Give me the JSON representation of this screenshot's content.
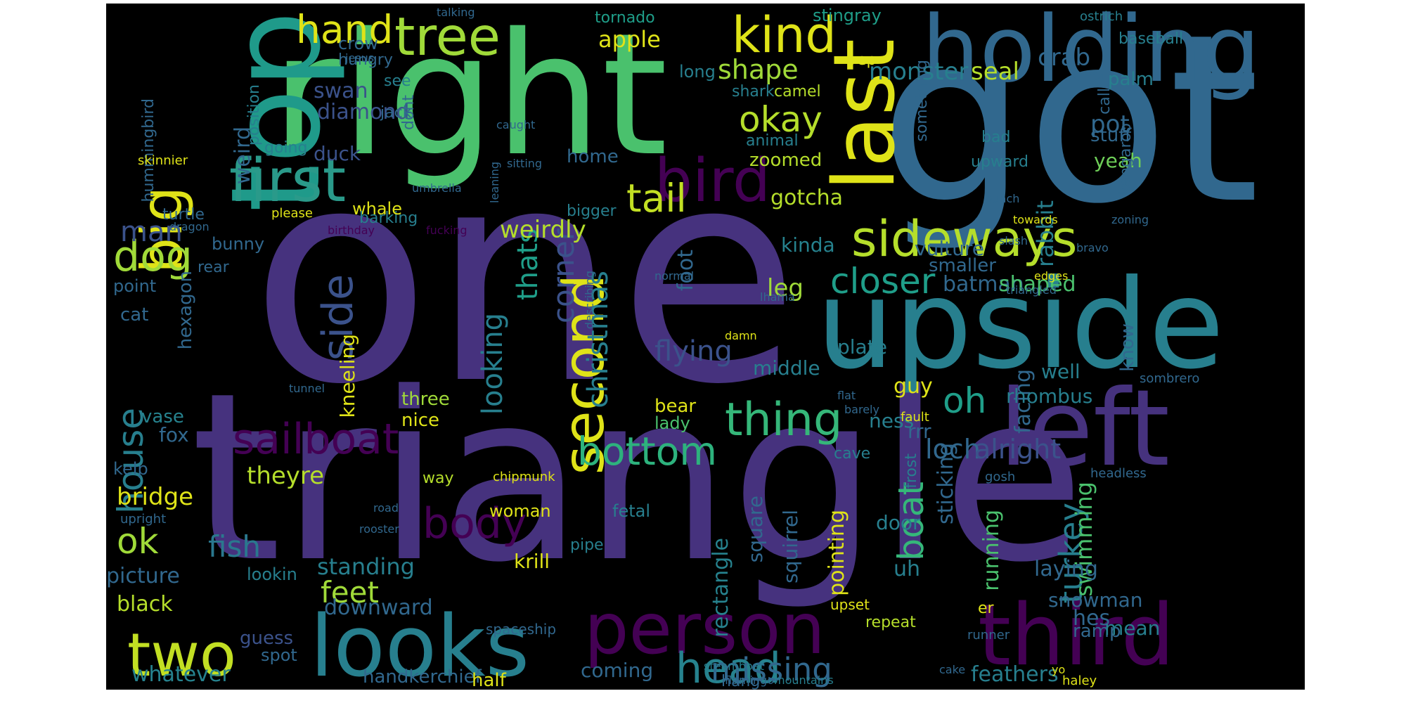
{
  "image": {
    "kind": "word cloud",
    "background": "#000000",
    "page_background": "#ffffff"
  },
  "palette": {
    "indigo": "#46327e",
    "purple": "#440154",
    "blue": "#365c8d",
    "steel": "#3b528b",
    "teal": "#277f8e",
    "cyan": "#1fa187",
    "green": "#4ac16d",
    "lime": "#a0da39",
    "yellow": "#dfe318",
    "gold": "#fde725"
  },
  "words": [
    {
      "text": "one",
      "color": "#46327e"
    },
    {
      "text": "triangle",
      "color": "#46327e"
    },
    {
      "text": "got",
      "color": "#31688e"
    },
    {
      "text": "right",
      "color": "#4ac16d"
    },
    {
      "text": "upside",
      "color": "#277f8e"
    },
    {
      "text": "top",
      "color": "#1f9a8a"
    },
    {
      "text": "holding",
      "color": "#31688e"
    },
    {
      "text": "last",
      "color": "#dfe318"
    },
    {
      "text": "left",
      "color": "#46327e"
    },
    {
      "text": "third",
      "color": "#440154"
    },
    {
      "text": "person",
      "color": "#440154"
    },
    {
      "text": "looks",
      "color": "#277f8e"
    },
    {
      "text": "first",
      "color": "#2a9a8a"
    },
    {
      "text": "bird",
      "color": "#440154"
    },
    {
      "text": "tree",
      "color": "#a0da39"
    },
    {
      "text": "hand",
      "color": "#dfe318"
    },
    {
      "text": "kind",
      "color": "#dfe318"
    },
    {
      "text": "second",
      "color": "#dfe318"
    },
    {
      "text": "sideways",
      "color": "#b5de2b"
    },
    {
      "text": "two",
      "color": "#c2df23"
    },
    {
      "text": "big",
      "color": "#dfe318"
    },
    {
      "text": "thing",
      "color": "#35b779"
    },
    {
      "text": "okay",
      "color": "#b5de2b"
    },
    {
      "text": "tail",
      "color": "#c2df23"
    },
    {
      "text": "dog",
      "color": "#a0da39"
    },
    {
      "text": "sailboat",
      "color": "#440154"
    },
    {
      "text": "bottom",
      "color": "#2db27d"
    },
    {
      "text": "head",
      "color": "#26828e"
    },
    {
      "text": "body",
      "color": "#440154"
    },
    {
      "text": "side",
      "color": "#3b528b"
    },
    {
      "text": "house",
      "color": "#277f8e"
    },
    {
      "text": "closer",
      "color": "#1f9e89"
    },
    {
      "text": "boat",
      "color": "#35b779"
    },
    {
      "text": "oh",
      "color": "#1f9e89"
    },
    {
      "text": "ok",
      "color": "#a0da39"
    },
    {
      "text": "fish",
      "color": "#2a788e"
    },
    {
      "text": "corner",
      "color": "#3b528b"
    },
    {
      "text": "missing",
      "color": "#31688e"
    },
    {
      "text": "turkey",
      "color": "#277f8e"
    },
    {
      "text": "shape",
      "color": "#a0da39"
    },
    {
      "text": "feet",
      "color": "#a0da39"
    },
    {
      "text": "flying",
      "color": "#3b528b"
    },
    {
      "text": "thats",
      "color": "#1f9e89"
    },
    {
      "text": "looking",
      "color": "#277f8e"
    },
    {
      "text": "christmas",
      "color": "#277f8e"
    },
    {
      "text": "man",
      "color": "#3b528b"
    },
    {
      "text": "loch",
      "color": "#31688e"
    },
    {
      "text": "alright",
      "color": "#3b528b"
    },
    {
      "text": "monster",
      "color": "#277f8e"
    },
    {
      "text": "seal",
      "color": "#b5de2b"
    },
    {
      "text": "crab",
      "color": "#31688e"
    },
    {
      "text": "apple",
      "color": "#dfe318"
    },
    {
      "text": "weirdly",
      "color": "#b5de2b"
    },
    {
      "text": "weird",
      "color": "#31688e"
    },
    {
      "text": "diamond",
      "color": "#3b528b"
    },
    {
      "text": "swan",
      "color": "#3b528b"
    },
    {
      "text": "duck",
      "color": "#3b528b"
    },
    {
      "text": "rabbit",
      "color": "#277f8e"
    },
    {
      "text": "pot",
      "color": "#31688e"
    },
    {
      "text": "palm",
      "color": "#277f8e"
    },
    {
      "text": "yeah",
      "color": "#6ece58"
    },
    {
      "text": "stuff",
      "color": "#31688e"
    },
    {
      "text": "gotcha",
      "color": "#b5de2b"
    },
    {
      "text": "kinda",
      "color": "#26828e"
    },
    {
      "text": "leg",
      "color": "#a0da39"
    },
    {
      "text": "foot",
      "color": "#31688e"
    },
    {
      "text": "zoomed",
      "color": "#b5de2b"
    },
    {
      "text": "batman",
      "color": "#31688e"
    },
    {
      "text": "shaped",
      "color": "#4ac16d"
    },
    {
      "text": "smaller",
      "color": "#31688e"
    },
    {
      "text": "vulture",
      "color": "#31688e"
    },
    {
      "text": "facing",
      "color": "#31688e"
    },
    {
      "text": "swimming",
      "color": "#4ac16d"
    },
    {
      "text": "running",
      "color": "#4ac16d"
    },
    {
      "text": "sticking",
      "color": "#31688e"
    },
    {
      "text": "laying",
      "color": "#31688e"
    },
    {
      "text": "hes",
      "color": "#31688e"
    },
    {
      "text": "ramp",
      "color": "#31688e"
    },
    {
      "text": "feathers",
      "color": "#277f8e"
    },
    {
      "text": "snowman",
      "color": "#31688e"
    },
    {
      "text": "mean",
      "color": "#277f8e"
    },
    {
      "text": "pointing",
      "color": "#dfe318"
    },
    {
      "text": "rectangle",
      "color": "#26828e"
    },
    {
      "text": "square",
      "color": "#31688e"
    },
    {
      "text": "squirrel",
      "color": "#31688e"
    },
    {
      "text": "uh",
      "color": "#277f8e"
    },
    {
      "text": "ness",
      "color": "#277f8e"
    },
    {
      "text": "guy",
      "color": "#dfe318"
    },
    {
      "text": "plate",
      "color": "#277f8e"
    },
    {
      "text": "middle",
      "color": "#277f8e"
    },
    {
      "text": "well",
      "color": "#277f8e"
    },
    {
      "text": "rhombus",
      "color": "#277f8e"
    },
    {
      "text": "know",
      "color": "#31688e"
    },
    {
      "text": "theyre",
      "color": "#b5de2b"
    },
    {
      "text": "bridge",
      "color": "#dfe318"
    },
    {
      "text": "standing",
      "color": "#277f8e"
    },
    {
      "text": "picture",
      "color": "#31688e"
    },
    {
      "text": "black",
      "color": "#b5de2b"
    },
    {
      "text": "downward",
      "color": "#31688e"
    },
    {
      "text": "whatever",
      "color": "#26828e"
    },
    {
      "text": "coming",
      "color": "#31688e"
    },
    {
      "text": "handkerchief",
      "color": "#31688e"
    },
    {
      "text": "half",
      "color": "#dfe318"
    },
    {
      "text": "hang",
      "color": "#31688e"
    },
    {
      "text": "guess",
      "color": "#3b528b"
    },
    {
      "text": "spot",
      "color": "#31688e"
    },
    {
      "text": "lookin",
      "color": "#277f8e"
    },
    {
      "text": "krill",
      "color": "#dfe318"
    },
    {
      "text": "woman",
      "color": "#dfe318"
    },
    {
      "text": "pipe",
      "color": "#277f8e"
    },
    {
      "text": "fetal",
      "color": "#277f8e"
    },
    {
      "text": "bear",
      "color": "#dfe318"
    },
    {
      "text": "lady",
      "color": "#4ac16d"
    },
    {
      "text": "nice",
      "color": "#dfe318"
    },
    {
      "text": "three",
      "color": "#a0da39"
    },
    {
      "text": "way",
      "color": "#b5de2b"
    },
    {
      "text": "kneeling",
      "color": "#dfe318"
    },
    {
      "text": "fox",
      "color": "#31688e"
    },
    {
      "text": "vase",
      "color": "#26828e"
    },
    {
      "text": "kelp",
      "color": "#31688e"
    },
    {
      "text": "hexagon",
      "color": "#31688e"
    },
    {
      "text": "cat",
      "color": "#31688e"
    },
    {
      "text": "point",
      "color": "#31688e"
    },
    {
      "text": "rear",
      "color": "#31688e"
    },
    {
      "text": "bunny",
      "color": "#31688e"
    },
    {
      "text": "turtle",
      "color": "#31688e"
    },
    {
      "text": "hummingbird",
      "color": "#31688e"
    },
    {
      "text": "whale",
      "color": "#dfe318"
    },
    {
      "text": "barking",
      "color": "#277f8e"
    },
    {
      "text": "bigger",
      "color": "#277f8e"
    },
    {
      "text": "home",
      "color": "#31688e"
    },
    {
      "text": "going",
      "color": "#277f8e"
    },
    {
      "text": "position",
      "color": "#277f8e"
    },
    {
      "text": "crow",
      "color": "#31688e"
    },
    {
      "text": "hungry",
      "color": "#31688e"
    },
    {
      "text": "tornado",
      "color": "#1f9e89"
    },
    {
      "text": "long",
      "color": "#277f8e"
    },
    {
      "text": "stingray",
      "color": "#1f9e89"
    },
    {
      "text": "ostrich",
      "color": "#277f8e"
    },
    {
      "text": "baseball",
      "color": "#277f8e"
    },
    {
      "text": "shark",
      "color": "#277f8e"
    },
    {
      "text": "camel",
      "color": "#b5de2b"
    },
    {
      "text": "animal",
      "color": "#277f8e"
    },
    {
      "text": "bad",
      "color": "#277f8e"
    },
    {
      "text": "upward",
      "color": "#277f8e"
    },
    {
      "text": "call",
      "color": "#31688e"
    },
    {
      "text": "kangaroo",
      "color": "#31688e"
    },
    {
      "text": "something",
      "color": "#31688e"
    },
    {
      "text": "yep",
      "color": "#dfe318"
    },
    {
      "text": "see",
      "color": "#277f8e"
    },
    {
      "text": "jack",
      "color": "#31688e"
    },
    {
      "text": "dont",
      "color": "#31688e"
    },
    {
      "text": "jesus",
      "color": "#31688e"
    },
    {
      "text": "talking",
      "color": "#31688e"
    },
    {
      "text": "caught",
      "color": "#31688e"
    },
    {
      "text": "skinnier",
      "color": "#dfe318"
    },
    {
      "text": "please",
      "color": "#dfe318"
    },
    {
      "text": "sitting",
      "color": "#31688e"
    },
    {
      "text": "leaning",
      "color": "#31688e"
    },
    {
      "text": "dragon",
      "color": "#31688e"
    },
    {
      "text": "birthday",
      "color": "#440154"
    },
    {
      "text": "umbrella",
      "color": "#31688e"
    },
    {
      "text": "fucking",
      "color": "#440154"
    },
    {
      "text": "towards",
      "color": "#dfe318"
    },
    {
      "text": "slash",
      "color": "#31688e"
    },
    {
      "text": "edges",
      "color": "#dfe318"
    },
    {
      "text": "bunch",
      "color": "#31688e"
    },
    {
      "text": "bravo",
      "color": "#31688e"
    },
    {
      "text": "zoning",
      "color": "#31688e"
    },
    {
      "text": "triangled",
      "color": "#31688e"
    },
    {
      "text": "lhama",
      "color": "#31688e"
    },
    {
      "text": "normal",
      "color": "#31688e"
    },
    {
      "text": "describing",
      "color": "#31688e"
    },
    {
      "text": "damn",
      "color": "#dfe318"
    },
    {
      "text": "tunnel",
      "color": "#31688e"
    },
    {
      "text": "flat",
      "color": "#31688e"
    },
    {
      "text": "barely",
      "color": "#31688e"
    },
    {
      "text": "fault",
      "color": "#dfe318"
    },
    {
      "text": "sombrero",
      "color": "#31688e"
    },
    {
      "text": "headless",
      "color": "#31688e"
    },
    {
      "text": "chipmunk",
      "color": "#dfe318"
    },
    {
      "text": "road",
      "color": "#31688e"
    },
    {
      "text": "upright",
      "color": "#31688e"
    },
    {
      "text": "rooster",
      "color": "#31688e"
    },
    {
      "text": "spaceship",
      "color": "#31688e"
    },
    {
      "text": "cave",
      "color": "#277f8e"
    },
    {
      "text": "frost",
      "color": "#277f8e"
    },
    {
      "text": "rrr",
      "color": "#31688e"
    },
    {
      "text": "door",
      "color": "#277f8e"
    },
    {
      "text": "repeat",
      "color": "#b5de2b"
    },
    {
      "text": "upset",
      "color": "#dfe318"
    },
    {
      "text": "er",
      "color": "#dfe318"
    },
    {
      "text": "gosh",
      "color": "#31688e"
    },
    {
      "text": "runner",
      "color": "#31688e"
    },
    {
      "text": "haley",
      "color": "#dfe318"
    },
    {
      "text": "steamboat",
      "color": "#277f8e"
    },
    {
      "text": "flamingo",
      "color": "#31688e"
    },
    {
      "text": "mountains",
      "color": "#277f8e"
    },
    {
      "text": "cake",
      "color": "#31688e"
    },
    {
      "text": "yo",
      "color": "#dfe318"
    }
  ]
}
